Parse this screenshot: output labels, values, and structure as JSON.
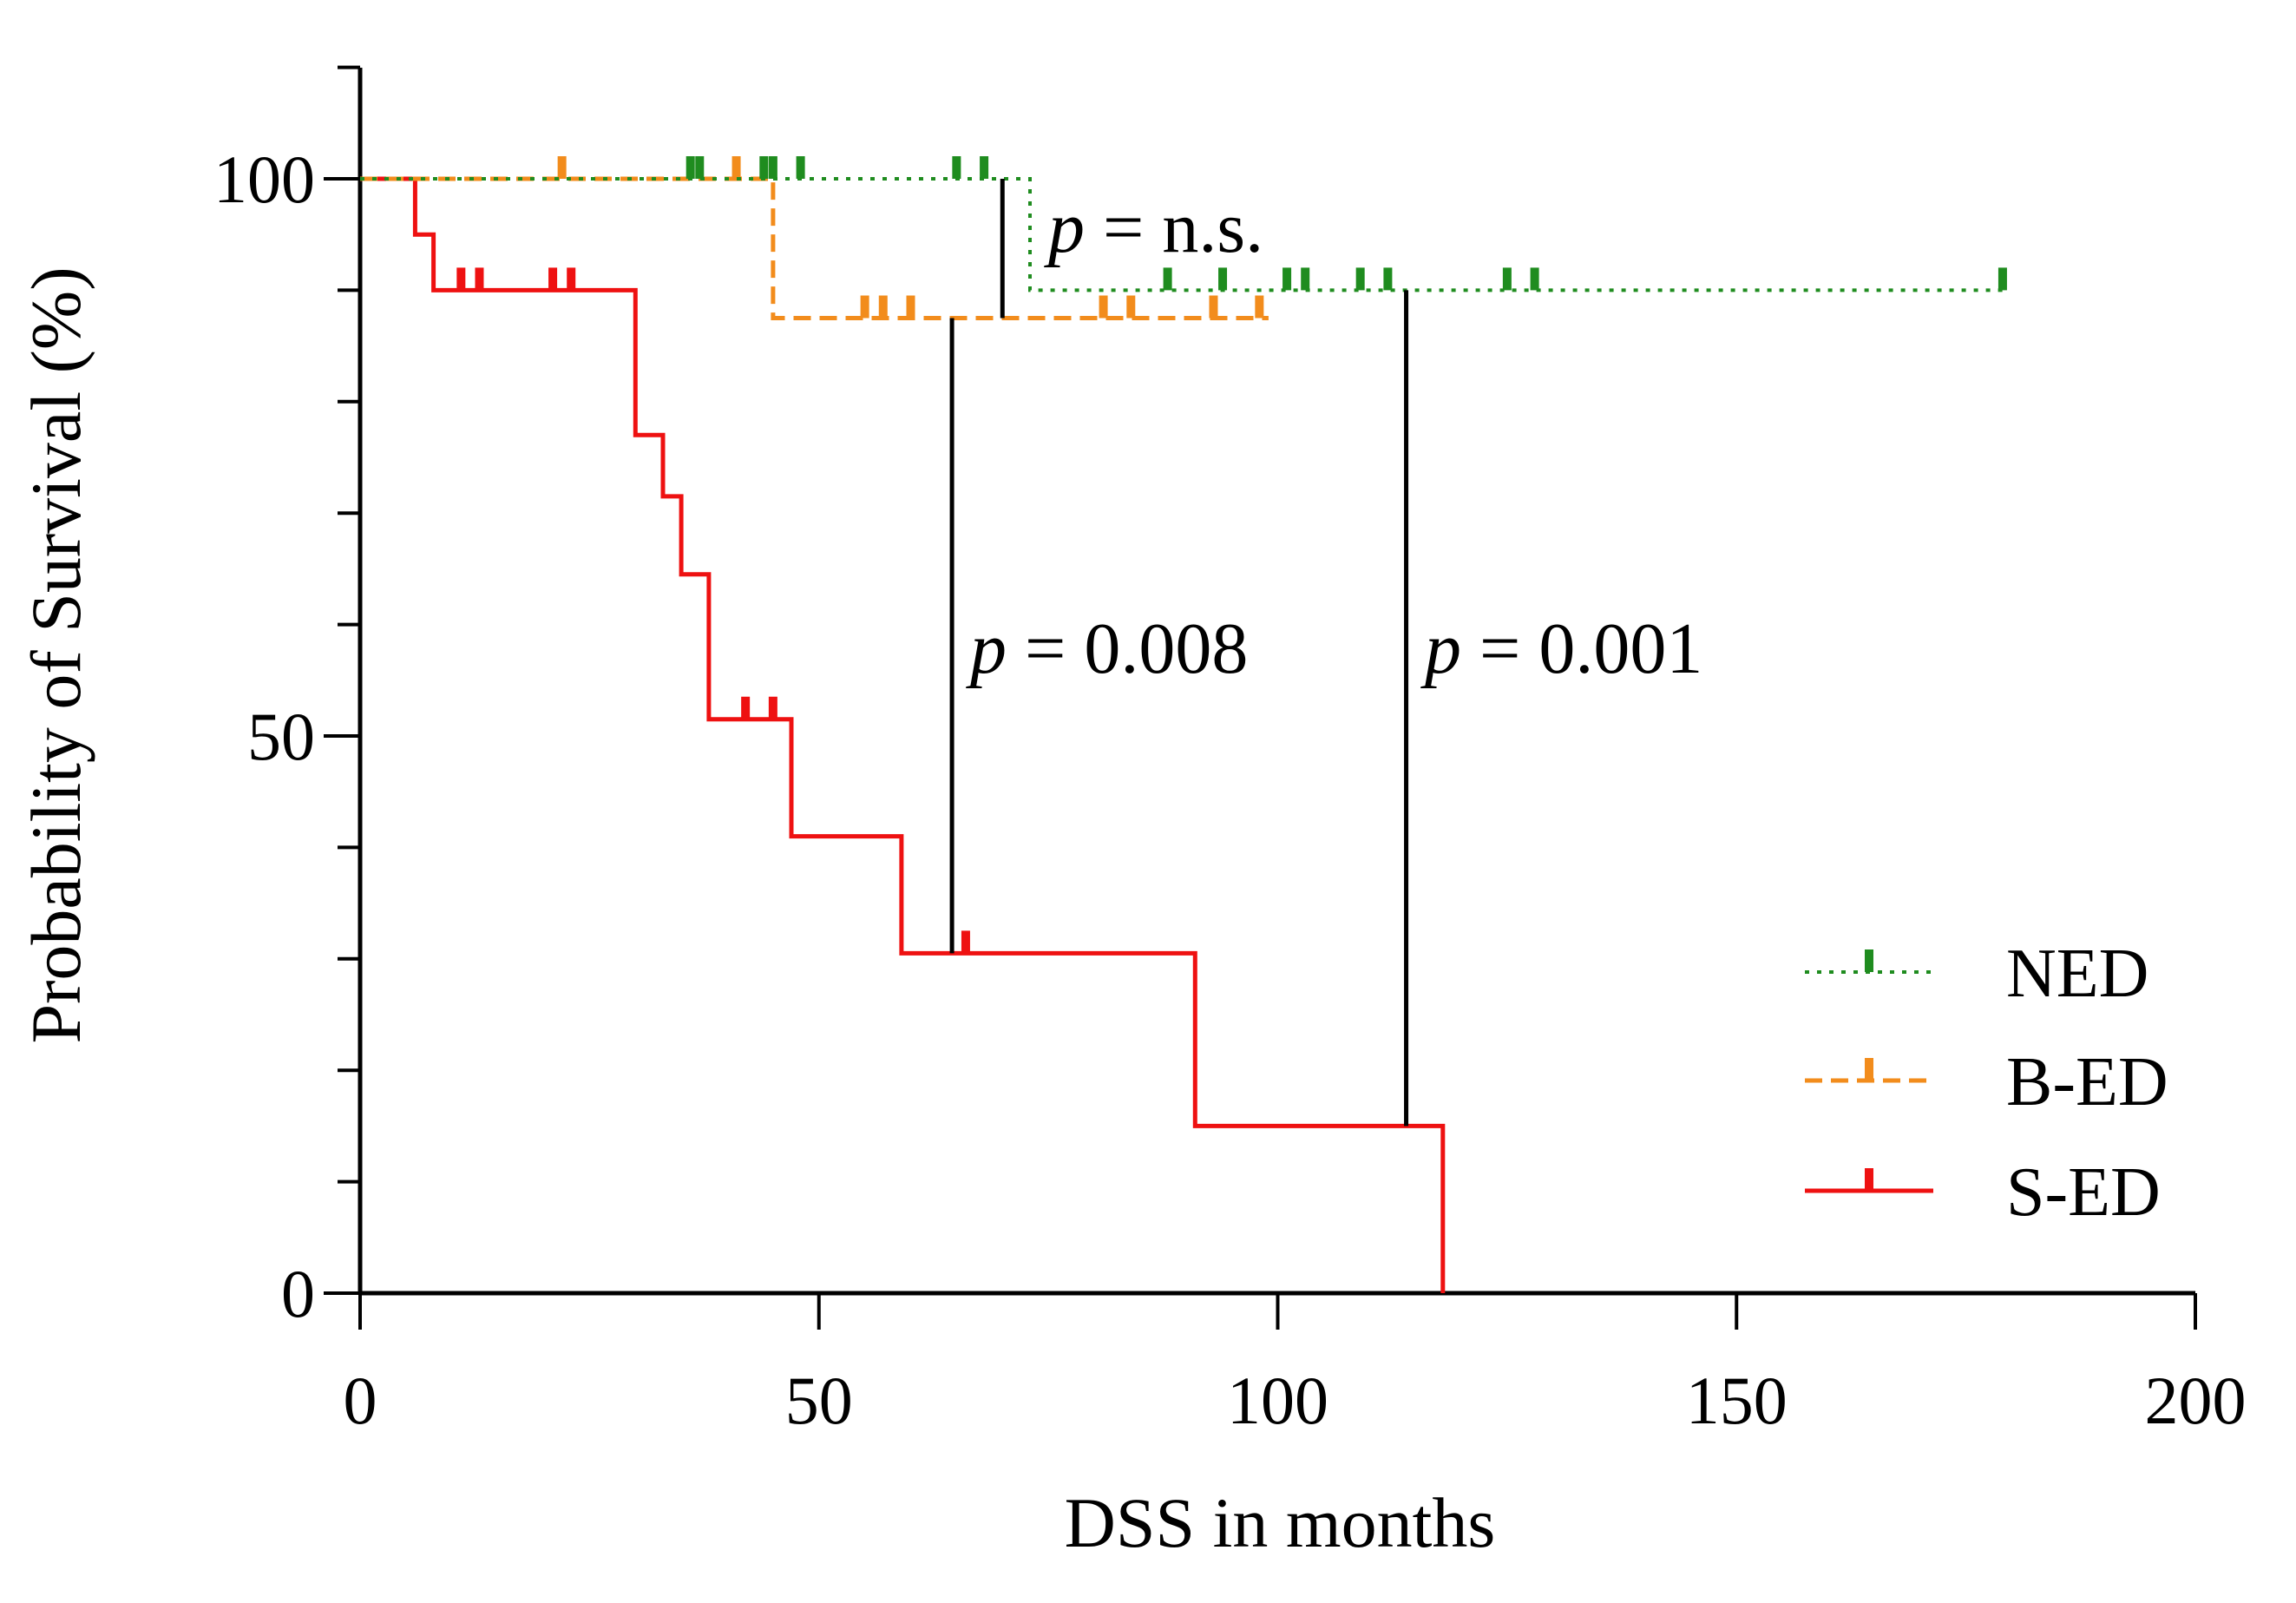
{
  "chart_data": {
    "type": "line",
    "subtype": "kaplan-meier step",
    "title": "",
    "xlabel": "DSS in months",
    "ylabel": "Probability of Survival (%)",
    "xlim": [
      0,
      200
    ],
    "ylim": [
      0,
      110
    ],
    "xticks": [
      0,
      50,
      100,
      150,
      200
    ],
    "xtick_labels": [
      "0",
      "50",
      "100",
      "150",
      "200"
    ],
    "yticks": [
      0,
      50,
      100
    ],
    "ytick_labels": [
      "0",
      "50",
      "100"
    ],
    "y_minor_step": 10,
    "x_minor_step": 10,
    "grid": false,
    "legend_position": "bottom-right",
    "series": [
      {
        "name": "NED",
        "color": "#1f8c1f",
        "style": "dotted",
        "steps": [
          [
            0,
            100
          ],
          [
            73,
            100
          ],
          [
            73,
            90
          ],
          [
            179,
            90
          ]
        ],
        "censor_x": [
          36,
          37,
          44,
          45,
          48,
          65,
          68,
          88,
          94,
          101,
          103,
          109,
          112,
          125,
          128,
          179
        ]
      },
      {
        "name": "B-ED",
        "color": "#f28c1c",
        "style": "dashed",
        "steps": [
          [
            0,
            100
          ],
          [
            45,
            100
          ],
          [
            45,
            87.5
          ],
          [
            99,
            87.5
          ]
        ],
        "censor_x": [
          22,
          41,
          55,
          57,
          60,
          81,
          84,
          93,
          98
        ]
      },
      {
        "name": "S-ED",
        "color": "#ee1111",
        "style": "solid",
        "steps": [
          [
            0,
            100
          ],
          [
            6,
            100
          ],
          [
            6,
            95
          ],
          [
            8,
            95
          ],
          [
            8,
            90
          ],
          [
            30,
            90
          ],
          [
            30,
            77
          ],
          [
            33,
            77
          ],
          [
            33,
            71.5
          ],
          [
            35,
            71.5
          ],
          [
            35,
            64.5
          ],
          [
            38,
            64.5
          ],
          [
            38,
            51.5
          ],
          [
            47,
            51.5
          ],
          [
            47,
            41
          ],
          [
            59,
            41
          ],
          [
            59,
            30.5
          ],
          [
            91,
            30.5
          ],
          [
            91,
            15
          ],
          [
            118,
            15
          ],
          [
            118,
            0
          ]
        ],
        "censor_x": [
          11,
          13,
          21,
          23,
          42,
          45,
          66
        ]
      }
    ],
    "annotations": [
      {
        "text_italic": "p",
        "text": " = n.s.",
        "bracket_x": 70,
        "y_from": 100,
        "y_to": 87.5
      },
      {
        "text_italic": "p",
        "text": " = 0.008",
        "bracket_x": 64.5,
        "y_from": 87.5,
        "y_to": 30.5
      },
      {
        "text_italic": "p",
        "text": " = 0.001",
        "bracket_x": 114,
        "y_from": 90,
        "y_to": 15
      }
    ]
  }
}
